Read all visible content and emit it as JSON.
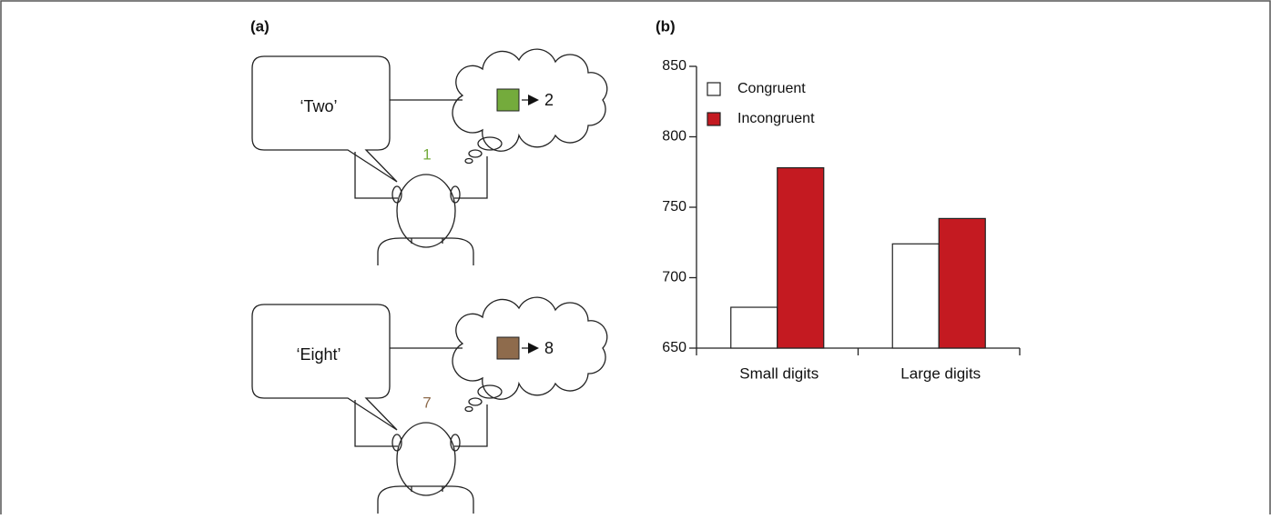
{
  "panel_labels": {
    "a": "(a)",
    "b": "(b)"
  },
  "diagram": {
    "scenes": [
      {
        "speech": "‘Two’",
        "thought_digit": "2",
        "shown_digit": "1",
        "color": "#74ab3c"
      },
      {
        "speech": "‘Eight’",
        "thought_digit": "8",
        "shown_digit": "7",
        "color": "#8e6b4c"
      }
    ]
  },
  "chart_data": {
    "type": "bar",
    "categories": [
      "Small digits",
      "Large digits"
    ],
    "series": [
      {
        "name": "Congruent",
        "color": "#ffffff",
        "values": [
          679,
          724
        ]
      },
      {
        "name": "Incongruent",
        "color": "#c41a21",
        "values": [
          778,
          742
        ]
      }
    ],
    "ylim": [
      650,
      850
    ],
    "yticks": [
      650,
      700,
      750,
      800,
      850
    ],
    "legend": "upper left",
    "grid": false
  }
}
